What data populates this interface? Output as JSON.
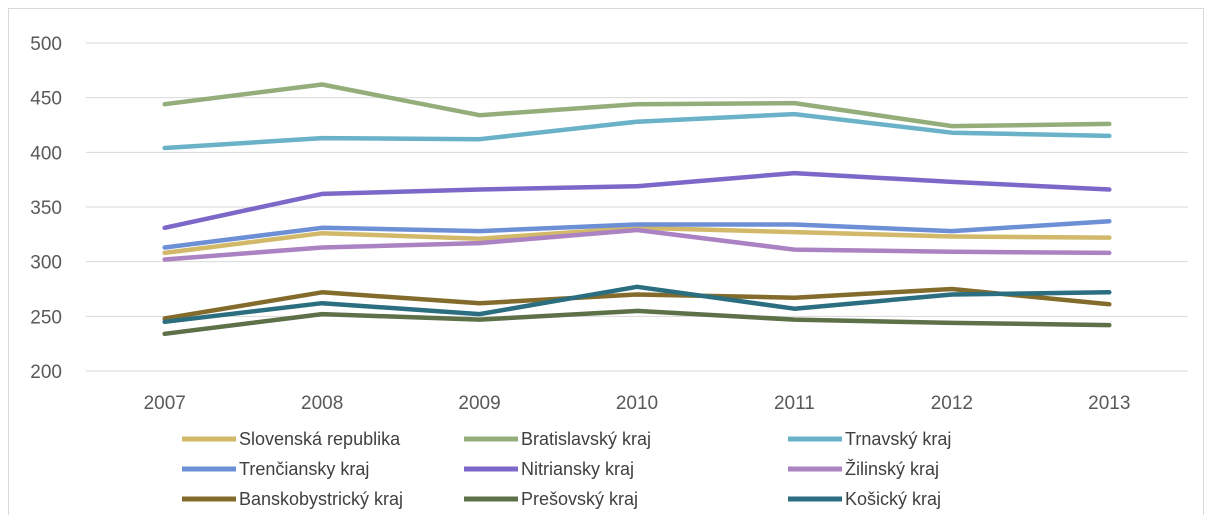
{
  "chart_data": {
    "type": "line",
    "title": "",
    "xlabel": "",
    "ylabel": "",
    "categories": [
      "2007",
      "2008",
      "2009",
      "2010",
      "2011",
      "2012",
      "2013"
    ],
    "ylim": [
      200,
      500
    ],
    "yticks": [
      200,
      250,
      300,
      350,
      400,
      450,
      500
    ],
    "grid": "horizontal",
    "legend_position": "bottom",
    "series": [
      {
        "name": "Slovenská republika",
        "color": "#d2b96a",
        "values": [
          308,
          326,
          321,
          331,
          327,
          323,
          322
        ]
      },
      {
        "name": "Bratislavský kraj",
        "color": "#94ae7b",
        "values": [
          444,
          462,
          434,
          444,
          445,
          424,
          426
        ]
      },
      {
        "name": "Trnavský kraj",
        "color": "#6ab2c8",
        "values": [
          404,
          413,
          412,
          428,
          435,
          418,
          415
        ]
      },
      {
        "name": "Trenčiansky kraj",
        "color": "#6d8fd6",
        "values": [
          313,
          331,
          328,
          334,
          334,
          328,
          337
        ]
      },
      {
        "name": "Nitriansky kraj",
        "color": "#7c68c9",
        "values": [
          331,
          362,
          366,
          369,
          381,
          373,
          366
        ]
      },
      {
        "name": "Žilinský kraj",
        "color": "#ab82c2",
        "values": [
          302,
          313,
          317,
          329,
          311,
          309,
          308
        ]
      },
      {
        "name": "Banskobystrický kraj",
        "color": "#836b2c",
        "values": [
          248,
          272,
          262,
          270,
          267,
          275,
          261
        ]
      },
      {
        "name": "Prešovský kraj",
        "color": "#5d7048",
        "values": [
          234,
          252,
          247,
          255,
          247,
          244,
          242
        ]
      },
      {
        "name": "Košický kraj",
        "color": "#2b6e80",
        "values": [
          245,
          262,
          252,
          277,
          257,
          270,
          272
        ]
      }
    ]
  }
}
